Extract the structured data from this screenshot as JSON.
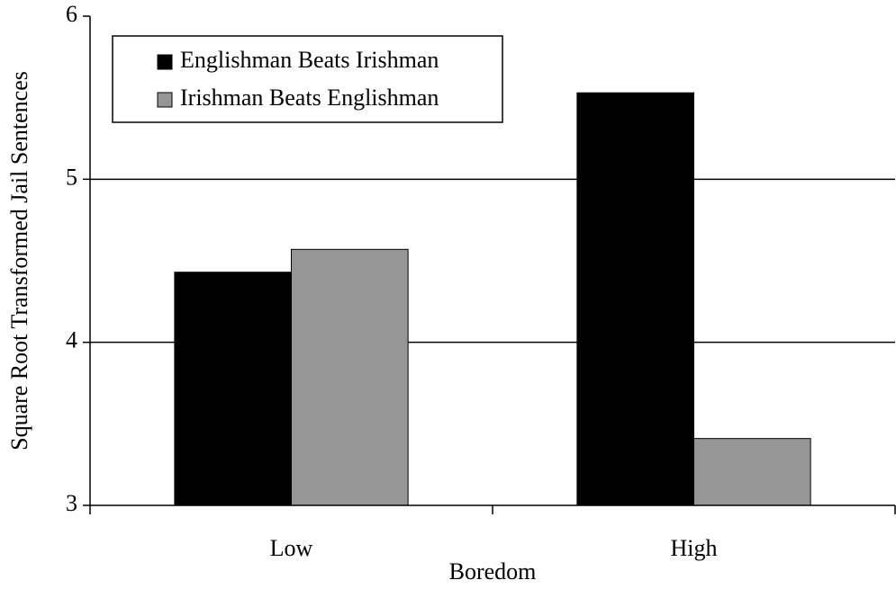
{
  "chart_data": {
    "type": "bar",
    "y_label": "Square Root Transformed Jail Sentences",
    "x_label": "Boredom",
    "categories": [
      "Low",
      "High"
    ],
    "series": [
      {
        "name": "Englishman Beats Irishman",
        "color": "#000000",
        "values": [
          4.43,
          5.53
        ]
      },
      {
        "name": "Irishman Beats Englishman",
        "color": "#969696",
        "values": [
          4.57,
          3.41
        ]
      }
    ],
    "ylim": [
      3,
      6
    ],
    "yticks": [
      3,
      4,
      5,
      6
    ],
    "grid": true,
    "legend": "top-left"
  }
}
